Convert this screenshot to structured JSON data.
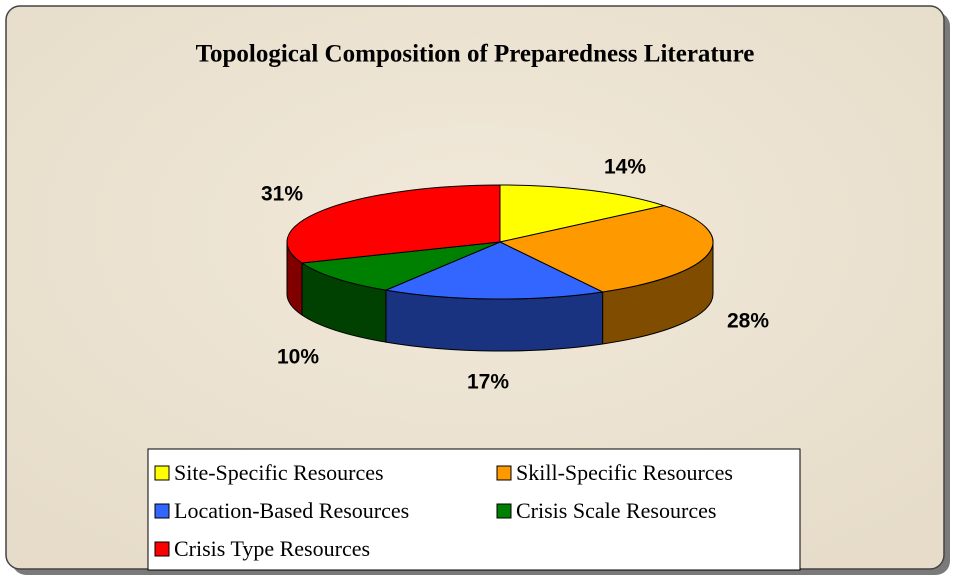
{
  "chart_data": {
    "type": "pie",
    "title": "Topological Composition of Preparedness Literature",
    "categories": [
      "Site-Specific Resources",
      "Skill-Specific Resources",
      "Location-Based Resources",
      "Crisis Scale Resources",
      "Crisis Type Resources"
    ],
    "values": [
      14,
      28,
      17,
      10,
      31
    ],
    "value_labels": [
      "14%",
      "28%",
      "17%",
      "10%",
      "31%"
    ],
    "colors": [
      "#ffff00",
      "#ff9900",
      "#3366ff",
      "#008000",
      "#ff0000"
    ],
    "legend": "bottom"
  }
}
